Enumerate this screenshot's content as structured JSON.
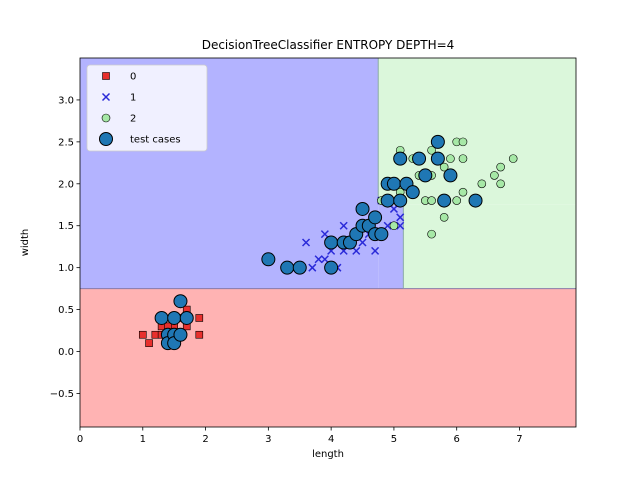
{
  "chart_data": {
    "type": "scatter",
    "title": "DecisionTreeClassifier ENTROPY DEPTH=4",
    "xlabel": "length",
    "ylabel": "width",
    "xlim": [
      0,
      7.9
    ],
    "ylim": [
      -0.9,
      3.5
    ],
    "xticks": [
      0,
      1,
      2,
      3,
      4,
      5,
      6,
      7
    ],
    "yticks": [
      -0.5,
      0.0,
      0.5,
      1.0,
      1.5,
      2.0,
      2.5,
      3.0
    ],
    "yticklabels": [
      "−0.5",
      "0.0",
      "0.5",
      "1.0",
      "1.5",
      "2.0",
      "2.5",
      "3.0"
    ],
    "grid": false,
    "legend_position": "top-left",
    "regions": [
      {
        "class": "0",
        "color": "#ffb3b3",
        "x": [
          0,
          7.9
        ],
        "y": [
          -0.9,
          0.75
        ]
      },
      {
        "class": "1",
        "color": "#b3b3ff",
        "x": [
          0,
          4.75
        ],
        "y": [
          0.75,
          3.5
        ]
      },
      {
        "class": "1",
        "color": "#b3b3ff",
        "x": [
          4.75,
          5.15
        ],
        "y": [
          0.75,
          1.75
        ]
      },
      {
        "class": "2",
        "color": "#dbf7db",
        "x": [
          4.75,
          7.9
        ],
        "y": [
          1.75,
          3.5
        ]
      },
      {
        "class": "2",
        "color": "#dbf7db",
        "x": [
          5.15,
          7.9
        ],
        "y": [
          0.75,
          1.75
        ]
      }
    ],
    "series": [
      {
        "name": "0",
        "marker": "square",
        "color": "#e8302d",
        "points": [
          [
            1.0,
            0.2
          ],
          [
            1.1,
            0.1
          ],
          [
            1.2,
            0.2
          ],
          [
            1.3,
            0.2
          ],
          [
            1.3,
            0.3
          ],
          [
            1.4,
            0.2
          ],
          [
            1.4,
            0.1
          ],
          [
            1.5,
            0.2
          ],
          [
            1.5,
            0.3
          ],
          [
            1.5,
            0.1
          ],
          [
            1.6,
            0.2
          ],
          [
            1.6,
            0.4
          ],
          [
            1.7,
            0.3
          ],
          [
            1.7,
            0.5
          ],
          [
            1.9,
            0.4
          ],
          [
            1.9,
            0.2
          ],
          [
            1.4,
            0.3
          ],
          [
            1.5,
            0.4
          ]
        ]
      },
      {
        "name": "1",
        "marker": "x",
        "color": "#2a2ad8",
        "points": [
          [
            3.5,
            1.0
          ],
          [
            3.6,
            1.3
          ],
          [
            3.7,
            1.0
          ],
          [
            3.8,
            1.1
          ],
          [
            3.9,
            1.1
          ],
          [
            3.9,
            1.4
          ],
          [
            4.0,
            1.2
          ],
          [
            4.0,
            1.0
          ],
          [
            4.1,
            1.3
          ],
          [
            4.2,
            1.2
          ],
          [
            4.2,
            1.5
          ],
          [
            4.3,
            1.3
          ],
          [
            4.4,
            1.2
          ],
          [
            4.4,
            1.4
          ],
          [
            4.5,
            1.5
          ],
          [
            4.5,
            1.3
          ],
          [
            4.6,
            1.4
          ],
          [
            4.6,
            1.5
          ],
          [
            4.7,
            1.2
          ],
          [
            4.7,
            1.4
          ],
          [
            4.8,
            1.4
          ],
          [
            4.9,
            1.5
          ],
          [
            5.0,
            1.7
          ],
          [
            5.1,
            1.6
          ],
          [
            4.8,
            1.8
          ],
          [
            5.1,
            1.5
          ],
          [
            3.3,
            1.0
          ],
          [
            4.1,
            1.0
          ]
        ]
      },
      {
        "name": "2",
        "marker": "circle",
        "color": "#a6e8a6",
        "points": [
          [
            4.8,
            1.8
          ],
          [
            4.9,
            1.8
          ],
          [
            5.0,
            1.5
          ],
          [
            5.0,
            2.0
          ],
          [
            5.1,
            1.9
          ],
          [
            5.1,
            2.4
          ],
          [
            5.1,
            2.3
          ],
          [
            5.2,
            2.0
          ],
          [
            5.3,
            2.3
          ],
          [
            5.4,
            2.1
          ],
          [
            5.5,
            2.1
          ],
          [
            5.5,
            1.8
          ],
          [
            5.6,
            1.4
          ],
          [
            5.6,
            2.4
          ],
          [
            5.6,
            1.8
          ],
          [
            5.6,
            2.1
          ],
          [
            5.7,
            2.3
          ],
          [
            5.8,
            2.2
          ],
          [
            5.8,
            1.6
          ],
          [
            5.9,
            2.3
          ],
          [
            6.0,
            1.8
          ],
          [
            6.0,
            2.5
          ],
          [
            6.1,
            2.5
          ],
          [
            6.1,
            2.3
          ],
          [
            6.1,
            1.9
          ],
          [
            6.3,
            1.8
          ],
          [
            6.4,
            2.0
          ],
          [
            6.6,
            2.1
          ],
          [
            6.7,
            2.2
          ],
          [
            6.7,
            2.0
          ],
          [
            6.9,
            2.3
          ],
          [
            5.4,
            2.3
          ],
          [
            5.9,
            2.1
          ]
        ]
      },
      {
        "name": "test cases",
        "marker": "circle-large",
        "color": "#1f77b4",
        "points": [
          [
            1.3,
            0.4
          ],
          [
            1.4,
            0.2
          ],
          [
            1.4,
            0.1
          ],
          [
            1.5,
            0.4
          ],
          [
            1.5,
            0.2
          ],
          [
            1.5,
            0.1
          ],
          [
            1.6,
            0.2
          ],
          [
            1.6,
            0.6
          ],
          [
            1.7,
            0.4
          ],
          [
            3.0,
            1.1
          ],
          [
            3.3,
            1.0
          ],
          [
            3.5,
            1.0
          ],
          [
            4.0,
            1.0
          ],
          [
            4.0,
            1.3
          ],
          [
            4.2,
            1.3
          ],
          [
            4.3,
            1.3
          ],
          [
            4.4,
            1.4
          ],
          [
            4.5,
            1.5
          ],
          [
            4.5,
            1.7
          ],
          [
            4.6,
            1.5
          ],
          [
            4.7,
            1.4
          ],
          [
            4.7,
            1.6
          ],
          [
            4.8,
            1.4
          ],
          [
            4.9,
            1.8
          ],
          [
            4.9,
            2.0
          ],
          [
            5.0,
            2.0
          ],
          [
            5.1,
            1.8
          ],
          [
            5.1,
            2.3
          ],
          [
            5.2,
            2.0
          ],
          [
            5.3,
            1.9
          ],
          [
            5.4,
            2.3
          ],
          [
            5.5,
            2.1
          ],
          [
            5.7,
            2.3
          ],
          [
            5.7,
            2.5
          ],
          [
            5.8,
            1.8
          ],
          [
            5.9,
            2.1
          ],
          [
            6.3,
            1.8
          ]
        ]
      }
    ]
  }
}
